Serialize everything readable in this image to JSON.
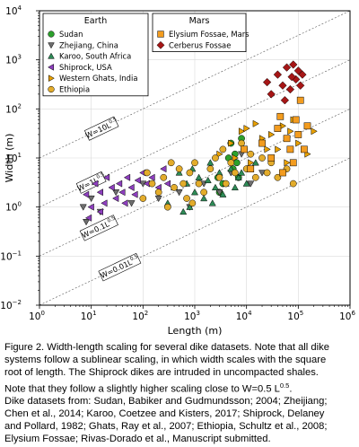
{
  "chart_data": {
    "type": "scatter",
    "xlabel": "Length (m)",
    "ylabel": "Width (m)",
    "xscale": "log",
    "yscale": "log",
    "xlim": [
      1,
      1000000
    ],
    "ylim": [
      0.01,
      10000
    ],
    "x_ticks": [
      {
        "base": "10",
        "exp": "0"
      },
      {
        "base": "10",
        "exp": "1"
      },
      {
        "base": "10",
        "exp": "2"
      },
      {
        "base": "10",
        "exp": "3"
      },
      {
        "base": "10",
        "exp": "4"
      },
      {
        "base": "10",
        "exp": "5"
      },
      {
        "base": "10",
        "exp": "6"
      }
    ],
    "y_ticks": [
      {
        "base": "10",
        "exp": "−2"
      },
      {
        "base": "10",
        "exp": "−1"
      },
      {
        "base": "10",
        "exp": "0"
      },
      {
        "base": "10",
        "exp": "1"
      },
      {
        "base": "10",
        "exp": "2"
      },
      {
        "base": "10",
        "exp": "3"
      },
      {
        "base": "10",
        "exp": "4"
      }
    ],
    "grid": true,
    "legends": [
      {
        "title": "Earth",
        "placement": "top-left",
        "entries": [
          "Sudan",
          "Zhejiang, China",
          "Karoo, South Africa",
          "Shiprock, USA",
          "Western Ghats, India",
          "Ethiopia"
        ]
      },
      {
        "title": "Mars",
        "placement": "top-center",
        "entries": [
          "Elysium Fossae, Mars",
          "Cerberus Fossae"
        ]
      }
    ],
    "reference_lines": [
      {
        "coef": 10,
        "label_text": "W=10L",
        "label_exp": "0.5"
      },
      {
        "coef": 1,
        "label_text": "W=1L",
        "label_exp": "0.5"
      },
      {
        "coef": 0.1,
        "label_text": "W=0.1L",
        "label_exp": "0.5"
      },
      {
        "coef": 0.01,
        "label_text": "W=0.01L",
        "label_exp": "0.5"
      }
    ],
    "series": [
      {
        "name": "Sudan",
        "marker": "circle",
        "color": "#2ca02c",
        "points": [
          [
            2800,
            4
          ],
          [
            3500,
            3
          ],
          [
            4500,
            10
          ],
          [
            5000,
            20
          ],
          [
            5500,
            6
          ],
          [
            6000,
            12
          ],
          [
            7000,
            4
          ],
          [
            8000,
            25
          ],
          [
            3000,
            2
          ],
          [
            9000,
            15
          ],
          [
            6500,
            8
          ]
        ]
      },
      {
        "name": "Zhejiang, China",
        "marker": "triangle-down",
        "color": "#6e6e6e",
        "points": [
          [
            7,
            1
          ],
          [
            10,
            1.5
          ],
          [
            15,
            0.8
          ],
          [
            30,
            2
          ],
          [
            60,
            1.2
          ],
          [
            100,
            3
          ],
          [
            200,
            1.5
          ],
          [
            500,
            2
          ],
          [
            800,
            1
          ],
          [
            1500,
            3
          ],
          [
            3000,
            2
          ],
          [
            5000,
            5
          ],
          [
            8000,
            12
          ],
          [
            12000,
            3
          ],
          [
            20000,
            5
          ],
          [
            8,
            0.5
          ]
        ]
      },
      {
        "name": "Karoo, South Africa",
        "marker": "triangle-up",
        "color": "#2e8b57",
        "points": [
          [
            300,
            1.2
          ],
          [
            400,
            2.5
          ],
          [
            500,
            5
          ],
          [
            600,
            0.8
          ],
          [
            700,
            3
          ],
          [
            900,
            6
          ],
          [
            1000,
            2
          ],
          [
            1200,
            4
          ],
          [
            1500,
            1.5
          ],
          [
            1800,
            3.5
          ],
          [
            2000,
            8
          ],
          [
            2500,
            2.5
          ],
          [
            3000,
            5
          ],
          [
            3500,
            1.8
          ],
          [
            4000,
            3
          ],
          [
            5000,
            6
          ],
          [
            6000,
            2.5
          ],
          [
            7000,
            4
          ],
          [
            8000,
            5
          ],
          [
            10000,
            3
          ],
          [
            12000,
            6
          ],
          [
            15000,
            8
          ],
          [
            800,
            1
          ],
          [
            2200,
            1.2
          ]
        ]
      },
      {
        "name": "Shiprock, USA",
        "marker": "triangle-left",
        "color": "#8e3fbf",
        "points": [
          [
            8,
            1.8
          ],
          [
            10,
            1
          ],
          [
            12,
            3
          ],
          [
            15,
            2
          ],
          [
            18,
            1.2
          ],
          [
            20,
            4
          ],
          [
            25,
            2.5
          ],
          [
            30,
            1.5
          ],
          [
            35,
            3
          ],
          [
            40,
            2
          ],
          [
            50,
            4
          ],
          [
            60,
            2.5
          ],
          [
            70,
            1.8
          ],
          [
            80,
            3.5
          ],
          [
            100,
            5
          ],
          [
            120,
            3
          ],
          [
            150,
            4
          ],
          [
            200,
            2.5
          ],
          [
            250,
            6
          ],
          [
            300,
            3
          ],
          [
            15,
            0.8
          ],
          [
            45,
            1.2
          ],
          [
            9,
            0.6
          ]
        ]
      },
      {
        "name": "Western Ghats, India",
        "marker": "triangle-right",
        "color": "#e8a000",
        "points": [
          [
            3000,
            12
          ],
          [
            5000,
            20
          ],
          [
            8000,
            35
          ],
          [
            10000,
            40
          ],
          [
            15000,
            50
          ],
          [
            20000,
            25
          ],
          [
            30000,
            30
          ],
          [
            40000,
            15
          ],
          [
            50000,
            45
          ],
          [
            70000,
            35
          ],
          [
            100000,
            20
          ],
          [
            150000,
            12
          ],
          [
            200000,
            35
          ],
          [
            12000,
            8
          ],
          [
            25000,
            15
          ],
          [
            60000,
            8
          ],
          [
            80000,
            60
          ],
          [
            6000,
            10
          ]
        ]
      },
      {
        "name": "Ethiopia",
        "marker": "circle",
        "color": "#e3ac2b",
        "points": [
          [
            100,
            1.5
          ],
          [
            150,
            3
          ],
          [
            200,
            2
          ],
          [
            250,
            4
          ],
          [
            300,
            1
          ],
          [
            400,
            2.5
          ],
          [
            500,
            6
          ],
          [
            600,
            3
          ],
          [
            700,
            1.5
          ],
          [
            800,
            5
          ],
          [
            1000,
            8
          ],
          [
            1200,
            3
          ],
          [
            1500,
            2
          ],
          [
            2000,
            6
          ],
          [
            2500,
            10
          ],
          [
            3000,
            4
          ],
          [
            3500,
            15
          ],
          [
            4000,
            3
          ],
          [
            5000,
            8
          ],
          [
            6000,
            5
          ],
          [
            8000,
            20
          ],
          [
            10000,
            6
          ],
          [
            12000,
            12
          ],
          [
            15000,
            4
          ],
          [
            20000,
            10
          ],
          [
            25000,
            5
          ],
          [
            30000,
            8
          ],
          [
            40000,
            4
          ],
          [
            60000,
            6
          ],
          [
            80000,
            3
          ],
          [
            120,
            5
          ],
          [
            350,
            8
          ],
          [
            900,
            1.2
          ]
        ]
      },
      {
        "name": "Elysium Fossae, Mars",
        "marker": "square",
        "color": "#f39c1f",
        "points": [
          [
            9000,
            15
          ],
          [
            12000,
            6
          ],
          [
            20000,
            20
          ],
          [
            30000,
            10
          ],
          [
            40000,
            40
          ],
          [
            50000,
            5
          ],
          [
            60000,
            25
          ],
          [
            70000,
            15
          ],
          [
            80000,
            8
          ],
          [
            90000,
            60
          ],
          [
            110000,
            150
          ],
          [
            130000,
            15
          ],
          [
            150000,
            45
          ],
          [
            45000,
            70
          ],
          [
            100000,
            30
          ]
        ]
      },
      {
        "name": "Cerberus Fossae",
        "marker": "diamond",
        "color": "#a61616",
        "points": [
          [
            25000,
            350
          ],
          [
            30000,
            200
          ],
          [
            40000,
            500
          ],
          [
            50000,
            300
          ],
          [
            60000,
            700
          ],
          [
            70000,
            250
          ],
          [
            80000,
            800
          ],
          [
            90000,
            400
          ],
          [
            100000,
            600
          ],
          [
            110000,
            300
          ],
          [
            120000,
            500
          ],
          [
            55000,
            150
          ],
          [
            75000,
            450
          ]
        ]
      }
    ]
  },
  "caption": {
    "lines": [
      "Figure 2. Width-length scaling for several dike datasets. Note that all dike",
      "systems follow a sublinear scaling, in which width scales with the square",
      "root of length. The Shiprock dikes are intruded in uncompacted shales.",
      "Note that they follow a slightly higher scaling close to W=0.5 L",
      "Dike datasets from: Sudan, Babiker and Gudmundsson; 2004; Zheijiang;",
      "Chen et al., 2014; Karoo, Coetzee and Kisters, 2017; Shiprock, Delaney",
      "and Pollard, 1982; Ghats, Ray et al., 2007; Ethiopia, Schultz et al., 2008;",
      "Elysium Fossae; Rivas-Dorado et al., Manuscript submitted."
    ],
    "line4_exp": "0.5",
    "line4_tail": "."
  }
}
